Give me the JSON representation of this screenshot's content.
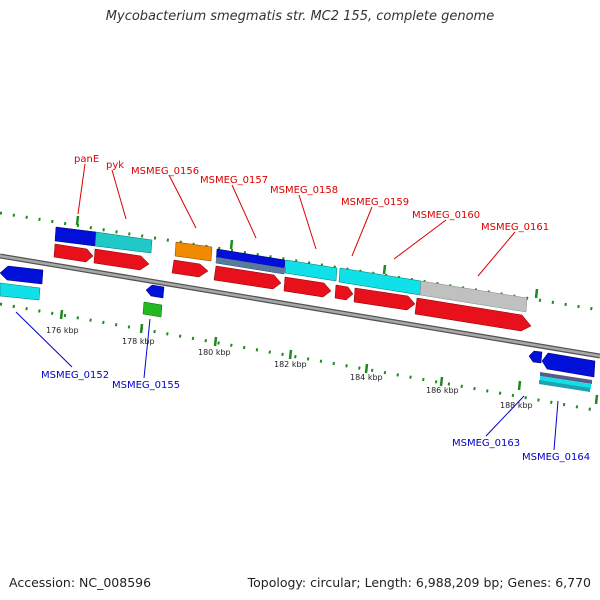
{
  "title": "Mycobacterium smegmatis str. MC2 155, complete genome",
  "accession": "Accession: NC_008596",
  "stats": "Topology: circular; Length: 6,988,209 bp; Genes: 6,770",
  "colors": {
    "forward_cds": "#e8101a",
    "reverse_cds": "#0010d8",
    "cyan": "#10e0e8",
    "teal": "#20c8c8",
    "orange": "#f08a00",
    "green": "#22b822",
    "grey": "#c0c0c0",
    "steel": "#5a7a9a",
    "backbone": "#7a7a7a",
    "tick": "#1e8a1e",
    "forward_label": "#dd0000",
    "reverse_label": "#0000cc"
  },
  "ticks": [
    "176 kbp",
    "178 kbp",
    "180 kbp",
    "182 kbp",
    "184 kbp",
    "186 kbp",
    "188 kbp"
  ],
  "forward_labels": [
    "panE",
    "pyk",
    "MSMEG_0156",
    "MSMEG_0157",
    "MSMEG_0158",
    "MSMEG_0159",
    "MSMEG_0160",
    "MSMEG_0161"
  ],
  "reverse_labels": [
    "MSMEG_0152",
    "MSMEG_0155",
    "MSMEG_0163",
    "MSMEG_0164"
  ]
}
